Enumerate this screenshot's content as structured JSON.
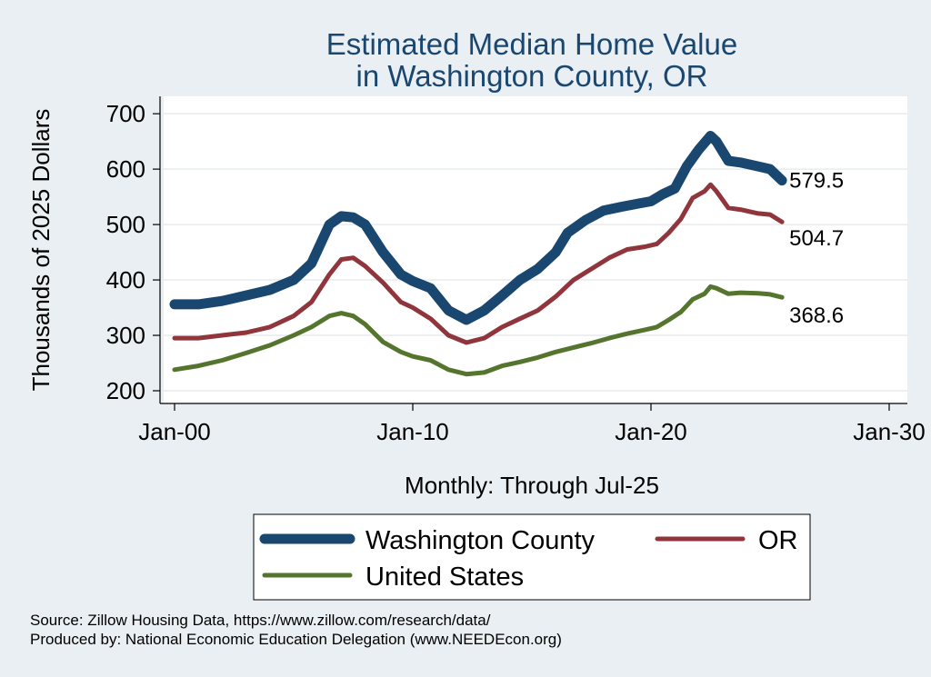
{
  "chart_data": {
    "type": "line",
    "title_lines": [
      "Estimated Median Home Value",
      "in Washington County, OR"
    ],
    "ylabel": "Thousands of 2025 Dollars",
    "xlabel": "Monthly: Through Jul-25",
    "ylim": [
      190,
      720
    ],
    "yticks": [
      200,
      300,
      400,
      500,
      600,
      700
    ],
    "xlim": [
      1999.5,
      2030
    ],
    "xticks": [
      {
        "value": 2000,
        "label": "Jan-00"
      },
      {
        "value": 2010,
        "label": "Jan-10"
      },
      {
        "value": 2020,
        "label": "Jan-20"
      },
      {
        "value": 2030,
        "label": "Jan-30"
      }
    ],
    "grid": true,
    "legend_position": "bottom",
    "series": [
      {
        "name": "Washington County",
        "color": "#1a476f",
        "end_label": "579.5",
        "points": [
          [
            2000.0,
            356
          ],
          [
            2001.0,
            356
          ],
          [
            2002.0,
            362
          ],
          [
            2003.0,
            372
          ],
          [
            2004.0,
            382
          ],
          [
            2005.0,
            400
          ],
          [
            2005.75,
            430
          ],
          [
            2006.5,
            500
          ],
          [
            2007.0,
            515
          ],
          [
            2007.5,
            513
          ],
          [
            2008.0,
            500
          ],
          [
            2008.75,
            450
          ],
          [
            2009.5,
            410
          ],
          [
            2010.0,
            398
          ],
          [
            2010.75,
            385
          ],
          [
            2011.5,
            345
          ],
          [
            2012.25,
            328
          ],
          [
            2013.0,
            345
          ],
          [
            2013.75,
            372
          ],
          [
            2014.5,
            400
          ],
          [
            2015.25,
            420
          ],
          [
            2016.0,
            450
          ],
          [
            2016.5,
            485
          ],
          [
            2017.25,
            508
          ],
          [
            2018.0,
            525
          ],
          [
            2018.75,
            532
          ],
          [
            2019.5,
            538
          ],
          [
            2020.0,
            542
          ],
          [
            2020.5,
            555
          ],
          [
            2021.0,
            565
          ],
          [
            2021.5,
            605
          ],
          [
            2022.0,
            635
          ],
          [
            2022.5,
            660
          ],
          [
            2022.75,
            650
          ],
          [
            2023.25,
            615
          ],
          [
            2023.75,
            612
          ],
          [
            2024.5,
            605
          ],
          [
            2025.0,
            600
          ],
          [
            2025.5,
            579.5
          ]
        ]
      },
      {
        "name": "OR",
        "color": "#90353b",
        "end_label": "504.7",
        "points": [
          [
            2000.0,
            295
          ],
          [
            2001.0,
            295
          ],
          [
            2002.0,
            300
          ],
          [
            2003.0,
            305
          ],
          [
            2004.0,
            315
          ],
          [
            2005.0,
            335
          ],
          [
            2005.75,
            360
          ],
          [
            2006.5,
            410
          ],
          [
            2007.0,
            437
          ],
          [
            2007.5,
            440
          ],
          [
            2008.0,
            425
          ],
          [
            2008.75,
            395
          ],
          [
            2009.5,
            360
          ],
          [
            2010.0,
            350
          ],
          [
            2010.75,
            330
          ],
          [
            2011.5,
            300
          ],
          [
            2012.25,
            287
          ],
          [
            2013.0,
            295
          ],
          [
            2013.75,
            315
          ],
          [
            2014.5,
            330
          ],
          [
            2015.25,
            345
          ],
          [
            2016.0,
            370
          ],
          [
            2016.75,
            400
          ],
          [
            2017.5,
            420
          ],
          [
            2018.25,
            440
          ],
          [
            2019.0,
            455
          ],
          [
            2019.75,
            460
          ],
          [
            2020.25,
            465
          ],
          [
            2020.75,
            485
          ],
          [
            2021.25,
            510
          ],
          [
            2021.75,
            548
          ],
          [
            2022.25,
            560
          ],
          [
            2022.5,
            572
          ],
          [
            2022.75,
            560
          ],
          [
            2023.25,
            530
          ],
          [
            2023.75,
            527
          ],
          [
            2024.5,
            520
          ],
          [
            2025.0,
            518
          ],
          [
            2025.5,
            504.7
          ]
        ]
      },
      {
        "name": "United States",
        "color": "#55752f",
        "end_label": "368.6",
        "points": [
          [
            2000.0,
            238
          ],
          [
            2001.0,
            245
          ],
          [
            2002.0,
            255
          ],
          [
            2003.0,
            268
          ],
          [
            2004.0,
            282
          ],
          [
            2005.0,
            300
          ],
          [
            2005.75,
            315
          ],
          [
            2006.5,
            335
          ],
          [
            2007.0,
            340
          ],
          [
            2007.5,
            335
          ],
          [
            2008.0,
            320
          ],
          [
            2008.75,
            288
          ],
          [
            2009.5,
            270
          ],
          [
            2010.0,
            262
          ],
          [
            2010.75,
            255
          ],
          [
            2011.5,
            238
          ],
          [
            2012.25,
            230
          ],
          [
            2013.0,
            233
          ],
          [
            2013.75,
            245
          ],
          [
            2014.5,
            252
          ],
          [
            2015.25,
            260
          ],
          [
            2016.0,
            270
          ],
          [
            2016.75,
            278
          ],
          [
            2017.5,
            286
          ],
          [
            2018.25,
            295
          ],
          [
            2019.0,
            303
          ],
          [
            2019.75,
            310
          ],
          [
            2020.25,
            315
          ],
          [
            2020.75,
            328
          ],
          [
            2021.25,
            342
          ],
          [
            2021.75,
            365
          ],
          [
            2022.25,
            375
          ],
          [
            2022.5,
            388
          ],
          [
            2022.75,
            385
          ],
          [
            2023.25,
            375
          ],
          [
            2023.75,
            377
          ],
          [
            2024.5,
            376
          ],
          [
            2025.0,
            374
          ],
          [
            2025.5,
            368.6
          ]
        ]
      }
    ],
    "legend_layout": [
      [
        "Washington County",
        "OR"
      ],
      [
        "United States"
      ]
    ]
  },
  "source_lines": [
    "Source: Zillow Housing Data, https://www.zillow.com/research/data/",
    "Produced by: National Economic Education Delegation (www.NEEDEcon.org)"
  ]
}
